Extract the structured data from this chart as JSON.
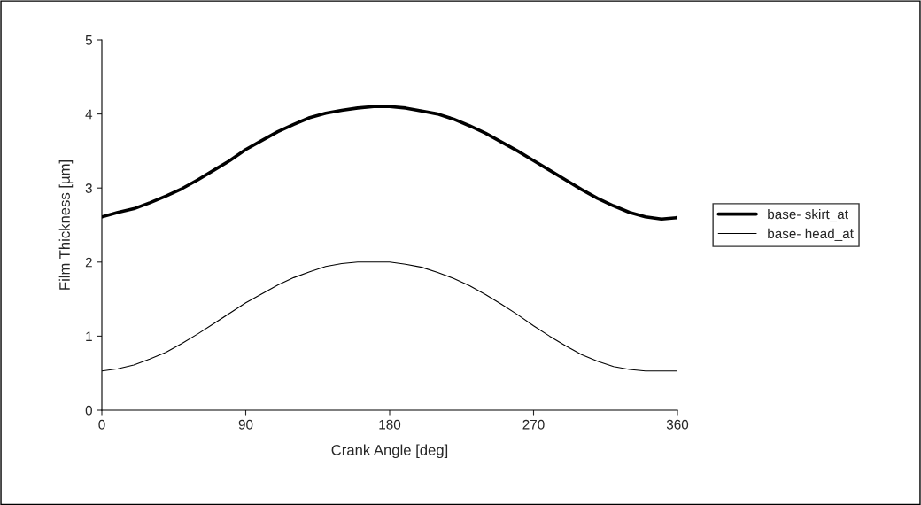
{
  "chart_data": {
    "type": "line",
    "xlabel": "Crank Angle [deg]",
    "ylabel": "Film Thickness [µm]",
    "x": [
      0,
      10,
      20,
      30,
      40,
      50,
      60,
      70,
      80,
      90,
      100,
      110,
      120,
      130,
      140,
      150,
      160,
      170,
      180,
      190,
      200,
      210,
      220,
      230,
      240,
      250,
      260,
      270,
      280,
      290,
      300,
      310,
      320,
      330,
      340,
      350,
      360
    ],
    "series": [
      {
        "name": "base- skirt_at",
        "color": "#000000",
        "values": [
          2.61,
          2.67,
          2.72,
          2.8,
          2.89,
          2.99,
          3.11,
          3.24,
          3.37,
          3.52,
          3.64,
          3.76,
          3.86,
          3.95,
          4.01,
          4.05,
          4.08,
          4.1,
          4.1,
          4.08,
          4.04,
          4.0,
          3.93,
          3.84,
          3.74,
          3.62,
          3.5,
          3.37,
          3.24,
          3.11,
          2.98,
          2.86,
          2.76,
          2.67,
          2.61,
          2.58,
          2.6
        ]
      },
      {
        "name": "base- head_at",
        "color": "#000000",
        "values": [
          0.53,
          0.56,
          0.61,
          0.69,
          0.78,
          0.9,
          1.03,
          1.17,
          1.31,
          1.45,
          1.57,
          1.69,
          1.79,
          1.87,
          1.94,
          1.98,
          2.0,
          2.0,
          2.0,
          1.97,
          1.93,
          1.86,
          1.78,
          1.68,
          1.56,
          1.43,
          1.29,
          1.14,
          1.0,
          0.87,
          0.75,
          0.66,
          0.59,
          0.55,
          0.53,
          0.53,
          0.53
        ]
      }
    ],
    "xlim": [
      0,
      360
    ],
    "xticks": [
      0,
      90,
      180,
      270,
      360
    ],
    "ylim": [
      0,
      5
    ],
    "yticks": [
      0,
      1,
      2,
      3,
      4,
      5
    ],
    "grid": false,
    "legend": "right",
    "marker": "none",
    "line_style": "solid"
  }
}
